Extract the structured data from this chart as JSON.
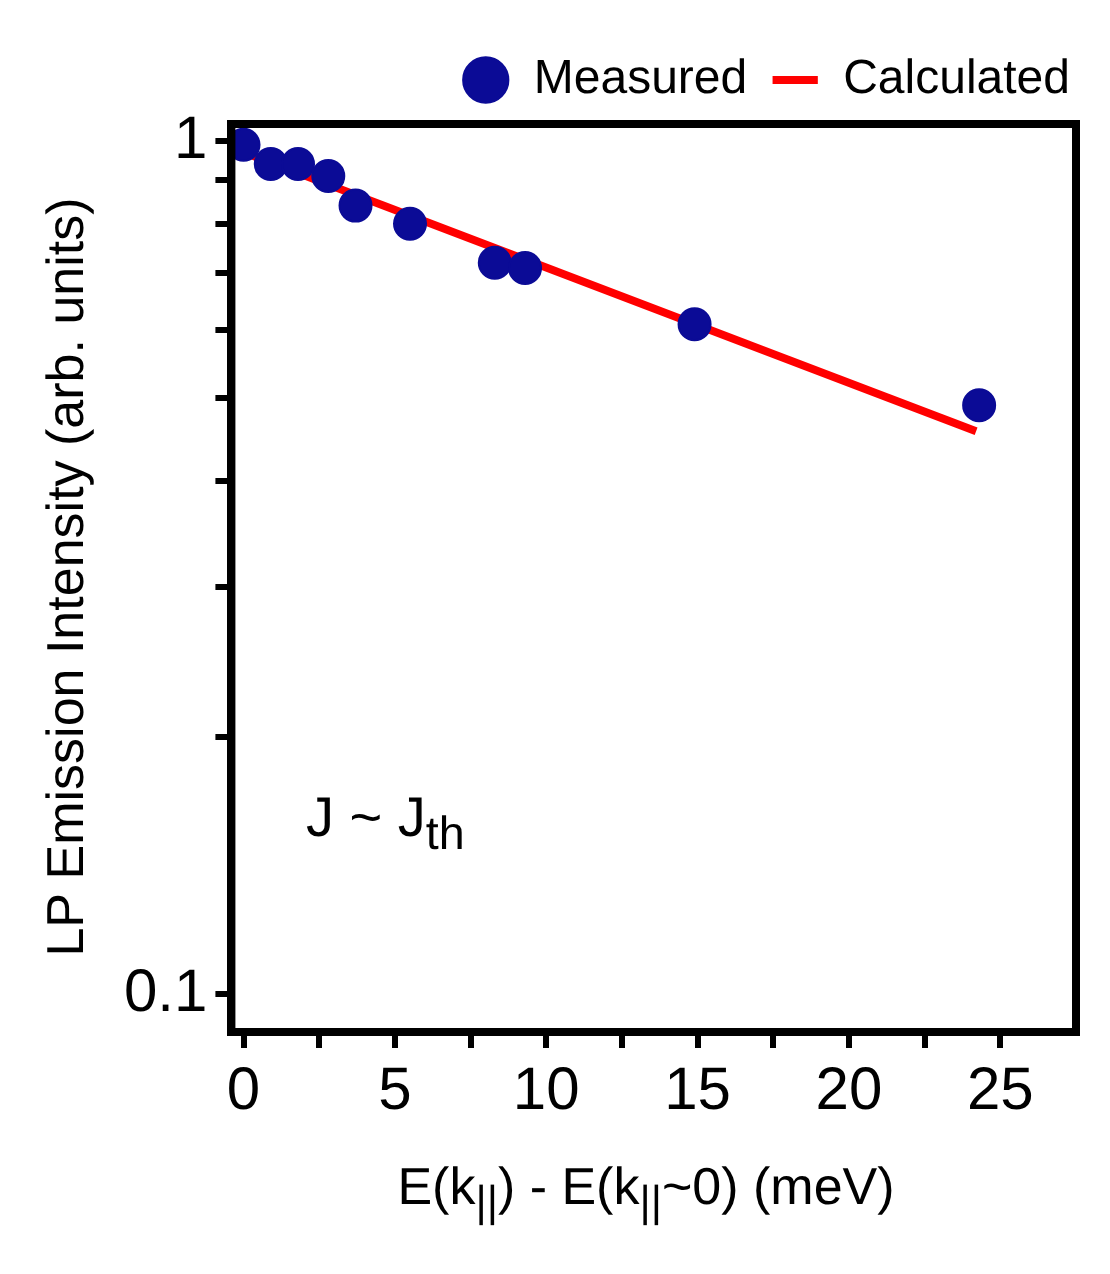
{
  "chart_data": {
    "type": "scatter",
    "xlabel": "E(k$_{||}$) - E(k$_{||}$~0) (meV)",
    "ylabel": "LP Emission Intensity (arb. units)",
    "log": "y",
    "grid": false,
    "legend": "top right",
    "xlim": [
      -0.4,
      27.5
    ],
    "ylim": [
      0.0903,
      1.047
    ],
    "xticks": [
      0,
      {
        "value": 2.5,
        "label": null
      },
      5,
      {
        "value": 7.5,
        "label": null
      },
      10,
      {
        "value": 12.5,
        "label": null
      },
      15,
      {
        "value": 17.5,
        "label": null
      },
      20,
      {
        "value": 22.5,
        "label": null
      },
      25
    ],
    "yticks": [
      0.1,
      {
        "value": 0.2,
        "label": null
      },
      {
        "value": 0.3,
        "label": null
      },
      {
        "value": 0.4,
        "label": null
      },
      {
        "value": 0.5,
        "label": null
      },
      {
        "value": 0.6,
        "label": null
      },
      {
        "value": 0.7,
        "label": null
      },
      {
        "value": 0.8,
        "label": null
      },
      {
        "value": 0.9,
        "label": null
      },
      1
    ],
    "annotations": [
      "J ~ J$_{th}$"
    ],
    "series": [
      {
        "name": "Measured",
        "marker": "circle",
        "color": "#0b0b96",
        "x": [
          0,
          0.9,
          1.8,
          2.8,
          3.7,
          5.5,
          8.3,
          9.3,
          14.9,
          24.3
        ],
        "values": [
          0.99,
          0.94,
          0.94,
          0.91,
          0.84,
          0.8,
          0.72,
          0.71,
          0.61,
          0.49
        ]
      },
      {
        "name": "Calculated",
        "type": "line",
        "marker": "none",
        "line_style": "solid",
        "color": "#ff0000",
        "x": [
          0,
          24.2
        ],
        "values": [
          0.97,
          0.457
        ]
      }
    ]
  }
}
